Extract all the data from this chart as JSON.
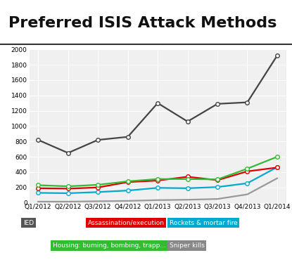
{
  "title": "Preferred ISIS Attack Methods",
  "categories": [
    "Q1/2012",
    "Q2/2012",
    "Q3/2012",
    "Q4/2012",
    "Q1/2013",
    "Q2/2013",
    "Q3/2013",
    "Q4/2013",
    "Q1/2014"
  ],
  "IED": [
    820,
    650,
    820,
    860,
    1300,
    1060,
    1290,
    1310,
    1920
  ],
  "assassination": [
    190,
    185,
    200,
    270,
    290,
    340,
    295,
    410,
    460
  ],
  "rockets": [
    130,
    125,
    140,
    160,
    195,
    190,
    205,
    255,
    465
  ],
  "housing": [
    230,
    215,
    235,
    280,
    310,
    310,
    305,
    445,
    600
  ],
  "sniper": [
    15,
    15,
    20,
    25,
    35,
    40,
    50,
    110,
    320
  ],
  "IED_color": "#444444",
  "assassination_color": "#dd0000",
  "rockets_color": "#00aacc",
  "housing_color": "#33bb33",
  "sniper_color": "#999999",
  "bg_color": "#ffffff",
  "plot_bg_color": "#f0f0f0",
  "grid_color": "#ffffff",
  "ylim": [
    0,
    2000
  ],
  "yticks": [
    0,
    200,
    400,
    600,
    800,
    1000,
    1200,
    1400,
    1600,
    1800,
    2000
  ],
  "title_fontsize": 16,
  "tick_fontsize": 6.5,
  "marker": "o",
  "marker_size": 4,
  "linewidth": 1.6,
  "legend_items": [
    {
      "label": "IED",
      "color": "#555555",
      "text_color": "#ffffff"
    },
    {
      "label": "Assassination/execution",
      "color": "#dd0000",
      "text_color": "#ffffff"
    },
    {
      "label": "Rockets & mortar fire",
      "color": "#00aacc",
      "text_color": "#ffffff"
    },
    {
      "label": "Housing: buming, bombing, trapp...",
      "color": "#33bb33",
      "text_color": "#ffffff"
    },
    {
      "label": "Sniper kills",
      "color": "#888888",
      "text_color": "#ffffff"
    }
  ]
}
